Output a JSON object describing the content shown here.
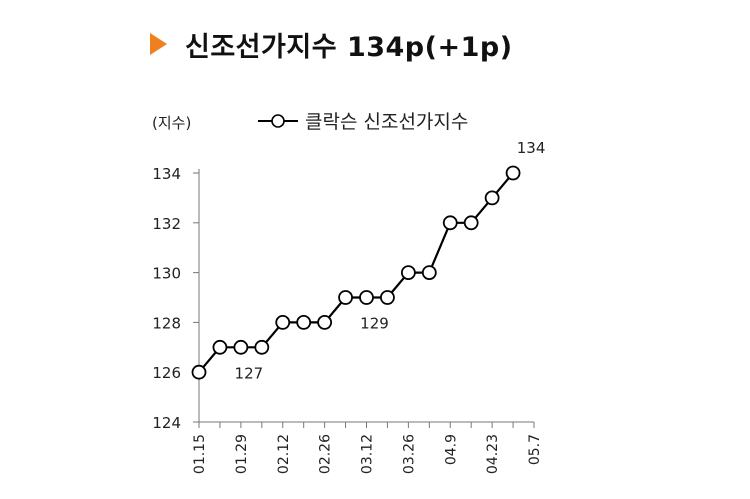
{
  "header": {
    "title": "신조선가지수 134p(+1p)",
    "accent_color": "#f07f1f"
  },
  "chart_data": {
    "type": "line",
    "ylabel": "(지수)",
    "ylim": [
      124,
      134
    ],
    "yticks": [
      "124",
      "126",
      "128",
      "130",
      "132",
      "134"
    ],
    "xticks": [
      "01.15",
      "01.29",
      "02.12",
      "02.26",
      "03.12",
      "03.26",
      "04.9",
      "04.23",
      "05.7"
    ],
    "series": [
      {
        "name": "클락슨 신조선가지수",
        "values": [
          126,
          127,
          127,
          127,
          128,
          128,
          128,
          129,
          129,
          129,
          130,
          130,
          132,
          132,
          133,
          134
        ]
      }
    ],
    "annotations": [
      {
        "index": 2,
        "text": "127"
      },
      {
        "index": 8,
        "text": "129"
      },
      {
        "index": 15,
        "text": "134"
      }
    ],
    "legend": "top",
    "line_color": "#000000",
    "marker_fill": "#ffffff"
  }
}
